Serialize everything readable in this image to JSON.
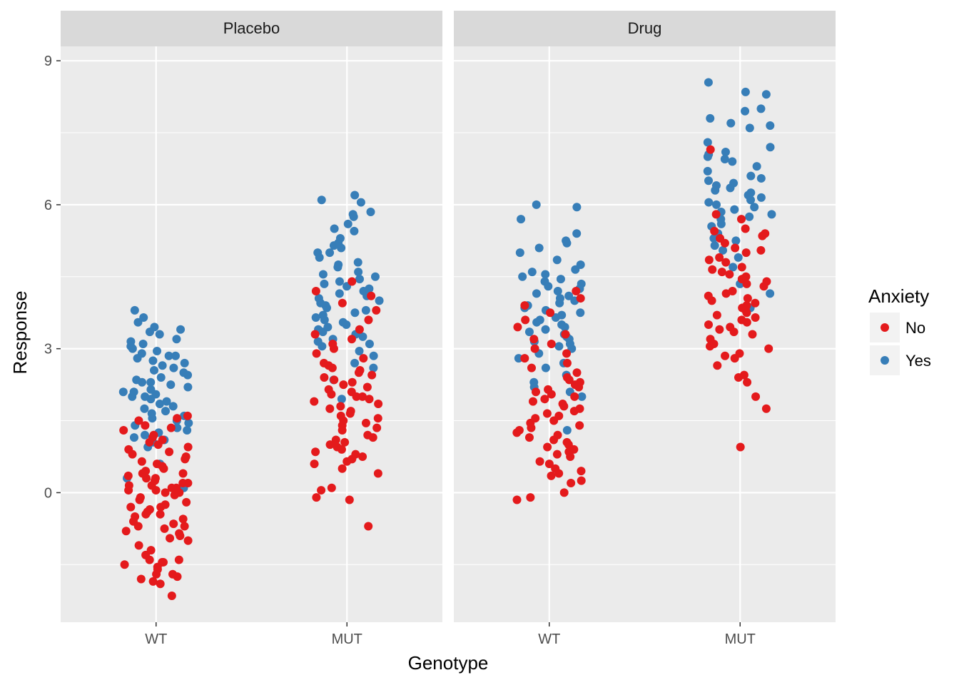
{
  "chart_data": {
    "type": "scatter",
    "xlabel": "Genotype",
    "ylabel": "Response",
    "categories": [
      "WT",
      "MUT"
    ],
    "ylim": [
      -2.7,
      9.3
    ],
    "y_ticks": [
      0,
      3,
      6,
      9
    ],
    "y_tick_labels": [
      "0",
      "3",
      "6",
      "9"
    ],
    "grid": true,
    "colors": {
      "No": "#e41a1c",
      "Yes": "#377eb8",
      "panel_bg": "#ebebeb",
      "strip_bg": "#d9d9d9",
      "grid": "#ffffff"
    },
    "legend": {
      "title": "Anxiety",
      "entries": [
        "No",
        "Yes"
      ],
      "position": "right"
    },
    "panels": [
      {
        "title": "Placebo",
        "groups": [
          {
            "genotype": "WT",
            "No": [
              -2.15,
              -1.9,
              -1.85,
              -1.8,
              -1.75,
              -1.7,
              -1.7,
              -1.6,
              -1.55,
              -1.5,
              -1.45,
              -1.45,
              -1.4,
              -1.4,
              -1.3,
              -1.2,
              -1.1,
              -1.0,
              -0.95,
              -0.9,
              -0.85,
              -0.8,
              -0.75,
              -0.7,
              -0.7,
              -0.65,
              -0.6,
              -0.55,
              -0.5,
              -0.45,
              -0.45,
              -0.4,
              -0.35,
              -0.3,
              -0.3,
              -0.25,
              -0.2,
              -0.15,
              -0.1,
              -0.05,
              0.0,
              0.0,
              0.05,
              0.05,
              0.1,
              0.1,
              0.15,
              0.15,
              0.2,
              0.2,
              0.25,
              0.3,
              0.3,
              0.35,
              0.4,
              0.4,
              0.45,
              0.5,
              0.55,
              0.6,
              0.65,
              0.7,
              0.75,
              0.8,
              0.85,
              0.9,
              0.95,
              1.0,
              1.05,
              1.1,
              1.15,
              1.2,
              1.3,
              1.35,
              1.4,
              1.5,
              1.55,
              1.6
            ],
            "Yes": [
              0.1,
              0.3,
              0.6,
              0.95,
              1.05,
              1.1,
              1.15,
              1.2,
              1.25,
              1.3,
              1.35,
              1.4,
              1.45,
              1.5,
              1.55,
              1.6,
              1.65,
              1.7,
              1.75,
              1.8,
              1.85,
              1.9,
              1.95,
              2.0,
              2.0,
              2.05,
              2.1,
              2.1,
              2.15,
              2.2,
              2.25,
              2.3,
              2.3,
              2.35,
              2.4,
              2.45,
              2.5,
              2.55,
              2.6,
              2.65,
              2.7,
              2.75,
              2.8,
              2.85,
              2.85,
              2.9,
              2.95,
              3.0,
              3.05,
              3.1,
              3.15,
              3.2,
              3.3,
              3.35,
              3.4,
              3.45,
              3.55,
              3.65,
              3.8
            ]
          },
          {
            "genotype": "MUT",
            "No": [
              -0.7,
              -0.15,
              -0.1,
              0.05,
              0.1,
              0.4,
              0.5,
              0.6,
              0.65,
              0.7,
              0.75,
              0.8,
              0.85,
              0.9,
              0.95,
              1.0,
              1.05,
              1.1,
              1.15,
              1.2,
              1.3,
              1.35,
              1.4,
              1.45,
              1.5,
              1.55,
              1.6,
              1.65,
              1.7,
              1.75,
              1.8,
              1.85,
              1.9,
              1.95,
              2.0,
              2.0,
              2.05,
              2.1,
              2.15,
              2.2,
              2.25,
              2.3,
              2.35,
              2.4,
              2.45,
              2.5,
              2.55,
              2.6,
              2.65,
              2.7,
              2.8,
              2.9,
              3.0,
              3.1,
              3.2,
              3.3,
              3.4,
              3.6,
              3.8,
              3.95,
              4.1,
              4.2,
              4.4
            ],
            "Yes": [
              1.95,
              2.35,
              2.6,
              2.7,
              2.85,
              2.95,
              3.05,
              3.1,
              3.15,
              3.2,
              3.25,
              3.3,
              3.35,
              3.4,
              3.45,
              3.5,
              3.55,
              3.6,
              3.65,
              3.7,
              3.75,
              3.8,
              3.85,
              3.9,
              3.95,
              4.0,
              4.05,
              4.1,
              4.15,
              4.2,
              4.25,
              4.3,
              4.35,
              4.4,
              4.45,
              4.5,
              4.55,
              4.6,
              4.7,
              4.75,
              4.8,
              4.9,
              5.0,
              5.0,
              5.1,
              5.15,
              5.2,
              5.3,
              5.45,
              5.5,
              5.6,
              5.75,
              5.8,
              5.85,
              6.05,
              6.1,
              6.2
            ]
          }
        ]
      },
      {
        "title": "Drug",
        "groups": [
          {
            "genotype": "WT",
            "No": [
              -0.15,
              -0.1,
              0.0,
              0.2,
              0.25,
              0.35,
              0.4,
              0.45,
              0.5,
              0.6,
              0.65,
              0.75,
              0.8,
              0.85,
              0.9,
              0.95,
              1.0,
              1.05,
              1.1,
              1.15,
              1.2,
              1.25,
              1.3,
              1.35,
              1.4,
              1.45,
              1.5,
              1.55,
              1.6,
              1.65,
              1.7,
              1.75,
              1.8,
              1.85,
              1.9,
              1.95,
              2.0,
              2.05,
              2.1,
              2.15,
              2.2,
              2.25,
              2.3,
              2.35,
              2.4,
              2.5,
              2.6,
              2.7,
              2.8,
              2.9,
              3.0,
              3.1,
              3.2,
              3.3,
              3.45,
              3.6,
              3.75,
              3.9,
              4.05,
              4.2
            ],
            "Yes": [
              1.3,
              2.0,
              2.1,
              2.2,
              2.3,
              2.45,
              2.6,
              2.7,
              2.8,
              2.9,
              3.0,
              3.05,
              3.1,
              3.15,
              3.2,
              3.25,
              3.3,
              3.35,
              3.4,
              3.45,
              3.5,
              3.55,
              3.6,
              3.65,
              3.7,
              3.75,
              3.8,
              3.85,
              3.9,
              3.95,
              4.0,
              4.05,
              4.1,
              4.15,
              4.2,
              4.25,
              4.3,
              4.35,
              4.4,
              4.45,
              4.5,
              4.55,
              4.6,
              4.65,
              4.75,
              4.85,
              5.0,
              5.1,
              5.2,
              5.25,
              5.4,
              5.7,
              5.95,
              6.0
            ]
          },
          {
            "genotype": "MUT",
            "No": [
              0.95,
              1.75,
              2.0,
              2.3,
              2.4,
              2.45,
              2.65,
              2.8,
              2.85,
              2.9,
              3.0,
              3.05,
              3.1,
              3.2,
              3.3,
              3.35,
              3.4,
              3.45,
              3.5,
              3.55,
              3.6,
              3.65,
              3.7,
              3.75,
              3.8,
              3.85,
              3.9,
              3.95,
              4.0,
              4.05,
              4.1,
              4.15,
              4.2,
              4.3,
              4.35,
              4.4,
              4.45,
              4.5,
              4.55,
              4.6,
              4.65,
              4.7,
              4.8,
              4.85,
              4.9,
              5.0,
              5.05,
              5.1,
              5.2,
              5.3,
              5.35,
              5.4,
              5.45,
              5.5,
              5.7,
              5.8,
              7.15
            ],
            "Yes": [
              3.85,
              4.15,
              4.35,
              4.7,
              4.9,
              5.05,
              5.15,
              5.25,
              5.3,
              5.4,
              5.55,
              5.6,
              5.7,
              5.75,
              5.8,
              5.85,
              5.9,
              5.95,
              6.0,
              6.05,
              6.1,
              6.15,
              6.2,
              6.25,
              6.3,
              6.35,
              6.4,
              6.45,
              6.5,
              6.55,
              6.6,
              6.7,
              6.8,
              6.9,
              6.95,
              7.0,
              7.05,
              7.1,
              7.2,
              7.3,
              7.6,
              7.65,
              7.7,
              7.8,
              7.95,
              8.0,
              8.3,
              8.35,
              8.55
            ]
          }
        ]
      }
    ]
  }
}
